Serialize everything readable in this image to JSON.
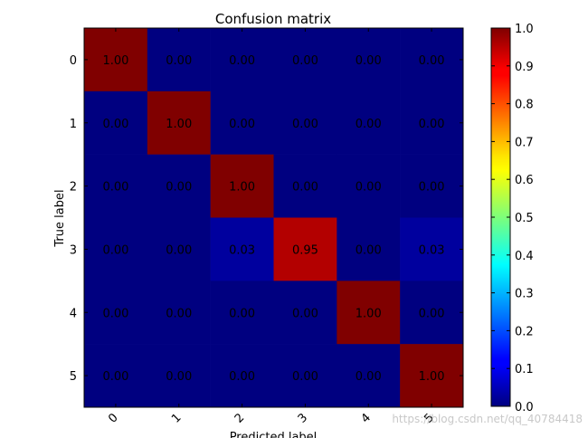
{
  "chart_data": {
    "type": "heatmap",
    "title": "Confusion matrix",
    "xlabel": "Predicted label",
    "ylabel": "True label",
    "x_categories": [
      "0",
      "1",
      "2",
      "3",
      "4",
      "5"
    ],
    "y_categories": [
      "0",
      "1",
      "2",
      "3",
      "4",
      "5"
    ],
    "values": [
      [
        1.0,
        0.0,
        0.0,
        0.0,
        0.0,
        0.0
      ],
      [
        0.0,
        1.0,
        0.0,
        0.0,
        0.0,
        0.0
      ],
      [
        0.0,
        0.0,
        1.0,
        0.0,
        0.0,
        0.0
      ],
      [
        0.0,
        0.0,
        0.03,
        0.95,
        0.0,
        0.03
      ],
      [
        0.0,
        0.0,
        0.0,
        0.0,
        1.0,
        0.0
      ],
      [
        0.0,
        0.0,
        0.0,
        0.0,
        0.0,
        1.0
      ]
    ],
    "colormap": "jet",
    "colorbar": {
      "range": [
        0.0,
        1.0
      ],
      "ticks": [
        "0.0",
        "0.1",
        "0.2",
        "0.3",
        "0.4",
        "0.5",
        "0.6",
        "0.7",
        "0.8",
        "0.9",
        "1.0"
      ]
    }
  },
  "watermark": "https://blog.csdn.net/qq_40784418"
}
